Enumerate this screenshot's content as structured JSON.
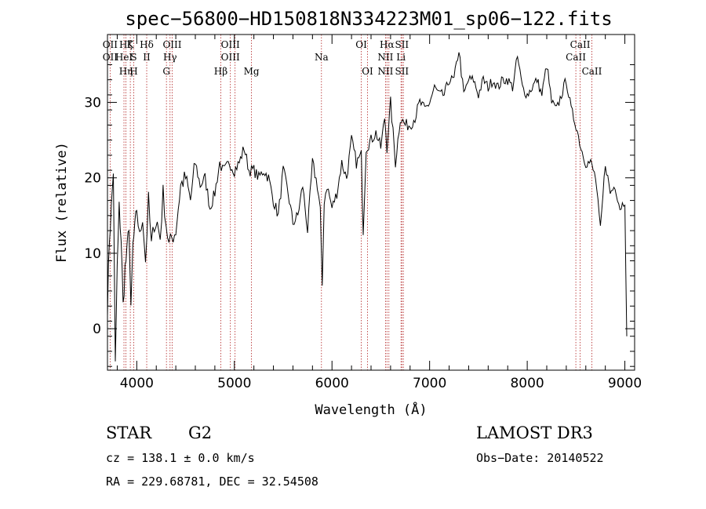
{
  "chart_data": {
    "type": "line",
    "title": "spec−56800−HD150818N334223M01_sp06−122.fits",
    "xlabel": "Wavelength (Å)",
    "ylabel": "Flux (relative)",
    "xlim": [
      3700,
      9100
    ],
    "ylim": [
      -5.5,
      39
    ],
    "xticks": [
      4000,
      5000,
      6000,
      7000,
      8000,
      9000
    ],
    "yticks": [
      0,
      10,
      20,
      30
    ],
    "series": [
      {
        "name": "flux",
        "x": [
          3700,
          3720,
          3740,
          3760,
          3780,
          3800,
          3820,
          3840,
          3860,
          3880,
          3900,
          3920,
          3940,
          3960,
          3980,
          4000,
          4030,
          4060,
          4090,
          4120,
          4150,
          4180,
          4210,
          4240,
          4270,
          4300,
          4330,
          4360,
          4400,
          4450,
          4500,
          4550,
          4600,
          4650,
          4700,
          4750,
          4800,
          4850,
          4880,
          4900,
          4950,
          5000,
          5050,
          5100,
          5150,
          5200,
          5250,
          5300,
          5350,
          5400,
          5450,
          5500,
          5550,
          5600,
          5650,
          5700,
          5750,
          5800,
          5850,
          5880,
          5900,
          5920,
          5950,
          6000,
          6050,
          6100,
          6150,
          6200,
          6250,
          6300,
          6320,
          6350,
          6400,
          6450,
          6500,
          6540,
          6563,
          6600,
          6650,
          6700,
          6750,
          6800,
          6850,
          6900,
          6950,
          7000,
          7050,
          7100,
          7150,
          7200,
          7250,
          7300,
          7350,
          7400,
          7450,
          7500,
          7550,
          7600,
          7650,
          7700,
          7750,
          7800,
          7850,
          7900,
          7950,
          8000,
          8050,
          8100,
          8150,
          8200,
          8250,
          8300,
          8350,
          8400,
          8450,
          8500,
          8550,
          8600,
          8650,
          8700,
          8750,
          8800,
          8850,
          8900,
          8950,
          9000,
          9020
        ],
        "y": [
          3,
          12,
          16,
          21,
          -5,
          8,
          16,
          12,
          3,
          8,
          10,
          14,
          2,
          11,
          13,
          16,
          12,
          15,
          9,
          17,
          11,
          14,
          14,
          12,
          18,
          14,
          11,
          12,
          13,
          19,
          20,
          17,
          22,
          19,
          20,
          16,
          18,
          22,
          21,
          21,
          22,
          21,
          22,
          24,
          21,
          21,
          20,
          21,
          20,
          17,
          15,
          21,
          18,
          14,
          15,
          19,
          13,
          22,
          19,
          16,
          5,
          17,
          19,
          16,
          18,
          22,
          20,
          25,
          22,
          23,
          13,
          24,
          25,
          26,
          24,
          28,
          24,
          30,
          22,
          28,
          27,
          27,
          28,
          30,
          29,
          30,
          32,
          31,
          31,
          33,
          33,
          37,
          31,
          33,
          33,
          31,
          33,
          32,
          33,
          32,
          33,
          33,
          32,
          36,
          32,
          31,
          32,
          33,
          31,
          35,
          30,
          29,
          31,
          33,
          29,
          27,
          24,
          22,
          22,
          20,
          13,
          22,
          18,
          19,
          16,
          17,
          -1
        ],
        "color": "#000000"
      }
    ],
    "emission_lines": [
      {
        "wave": 3727,
        "rows": [
          "OII",
          "OII"
        ]
      },
      {
        "wave": 3869,
        "rows": [
          "",
          "HeI"
        ]
      },
      {
        "wave": 3889,
        "rows": [
          "Hζ",
          "",
          "Hη"
        ]
      },
      {
        "wave": 3934,
        "rows": [
          "K"
        ]
      },
      {
        "wave": 3969,
        "rows": [
          "",
          "S",
          "H"
        ]
      },
      {
        "wave": 4102,
        "rows": [
          "Hδ",
          "II"
        ]
      },
      {
        "wave": 4304,
        "rows": [
          "",
          "",
          "G"
        ]
      },
      {
        "wave": 4341,
        "rows": [
          "",
          "Hγ"
        ]
      },
      {
        "wave": 4363,
        "rows": [
          "OIII"
        ]
      },
      {
        "wave": 4861,
        "rows": [
          "",
          "",
          "Hβ"
        ]
      },
      {
        "wave": 4959,
        "rows": [
          "OIII",
          "OIII"
        ]
      },
      {
        "wave": 5007,
        "rows": []
      },
      {
        "wave": 5175,
        "rows": [
          "",
          "",
          "Mg"
        ]
      },
      {
        "wave": 5892,
        "rows": [
          "",
          "Na"
        ]
      },
      {
        "wave": 6300,
        "rows": [
          "OI"
        ]
      },
      {
        "wave": 6364,
        "rows": [
          "",
          "",
          "OI"
        ]
      },
      {
        "wave": 6548,
        "rows": [
          "",
          "NII",
          "NII"
        ]
      },
      {
        "wave": 6563,
        "rows": [
          "Hα"
        ]
      },
      {
        "wave": 6583,
        "rows": []
      },
      {
        "wave": 6707,
        "rows": [
          "",
          "Li"
        ]
      },
      {
        "wave": 6716,
        "rows": [
          "SII",
          "",
          "SII"
        ]
      },
      {
        "wave": 6731,
        "rows": []
      },
      {
        "wave": 8498,
        "rows": [
          "",
          "CaII"
        ]
      },
      {
        "wave": 8542,
        "rows": [
          "CaII"
        ]
      },
      {
        "wave": 8662,
        "rows": [
          "",
          "",
          "CaII"
        ]
      }
    ]
  },
  "info": {
    "object_class": "STAR",
    "subclass": "G2",
    "survey": "LAMOST DR3",
    "cz": "cz = 138.1 ± 0.0 km/s",
    "obs_date": "Obs−Date: 20140522",
    "coords": "RA = 229.68781, DEC =  32.54508"
  }
}
